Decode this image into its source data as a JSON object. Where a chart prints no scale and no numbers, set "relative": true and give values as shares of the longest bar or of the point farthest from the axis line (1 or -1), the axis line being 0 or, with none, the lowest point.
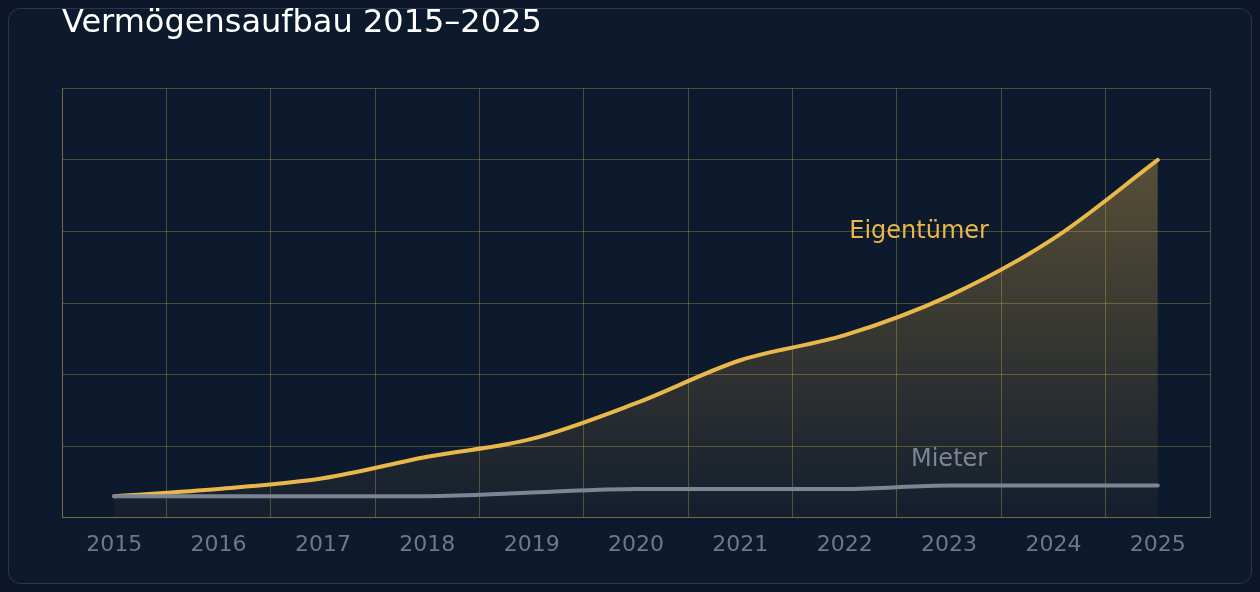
{
  "chart_data": {
    "type": "line",
    "title": "Vermögensaufbau 2015–2025",
    "relative": true,
    "grid": true,
    "legend": false,
    "categories": [
      "2015",
      "2016",
      "2017",
      "2018",
      "2019",
      "2020",
      "2021",
      "2022",
      "2023",
      "2024",
      "2025"
    ],
    "series": [
      {
        "name": "Eigentümer",
        "type": "area",
        "color": "#e8b84a",
        "values": [
          0.06,
          0.08,
          0.11,
          0.17,
          0.22,
          0.32,
          0.44,
          0.51,
          0.62,
          0.78,
          1
        ]
      },
      {
        "name": "Mieter",
        "type": "line",
        "color": "#7b8595",
        "values": [
          0.06,
          0.06,
          0.06,
          0.06,
          0.07,
          0.08,
          0.08,
          0.08,
          0.09,
          0.09,
          0.09
        ]
      }
    ]
  }
}
